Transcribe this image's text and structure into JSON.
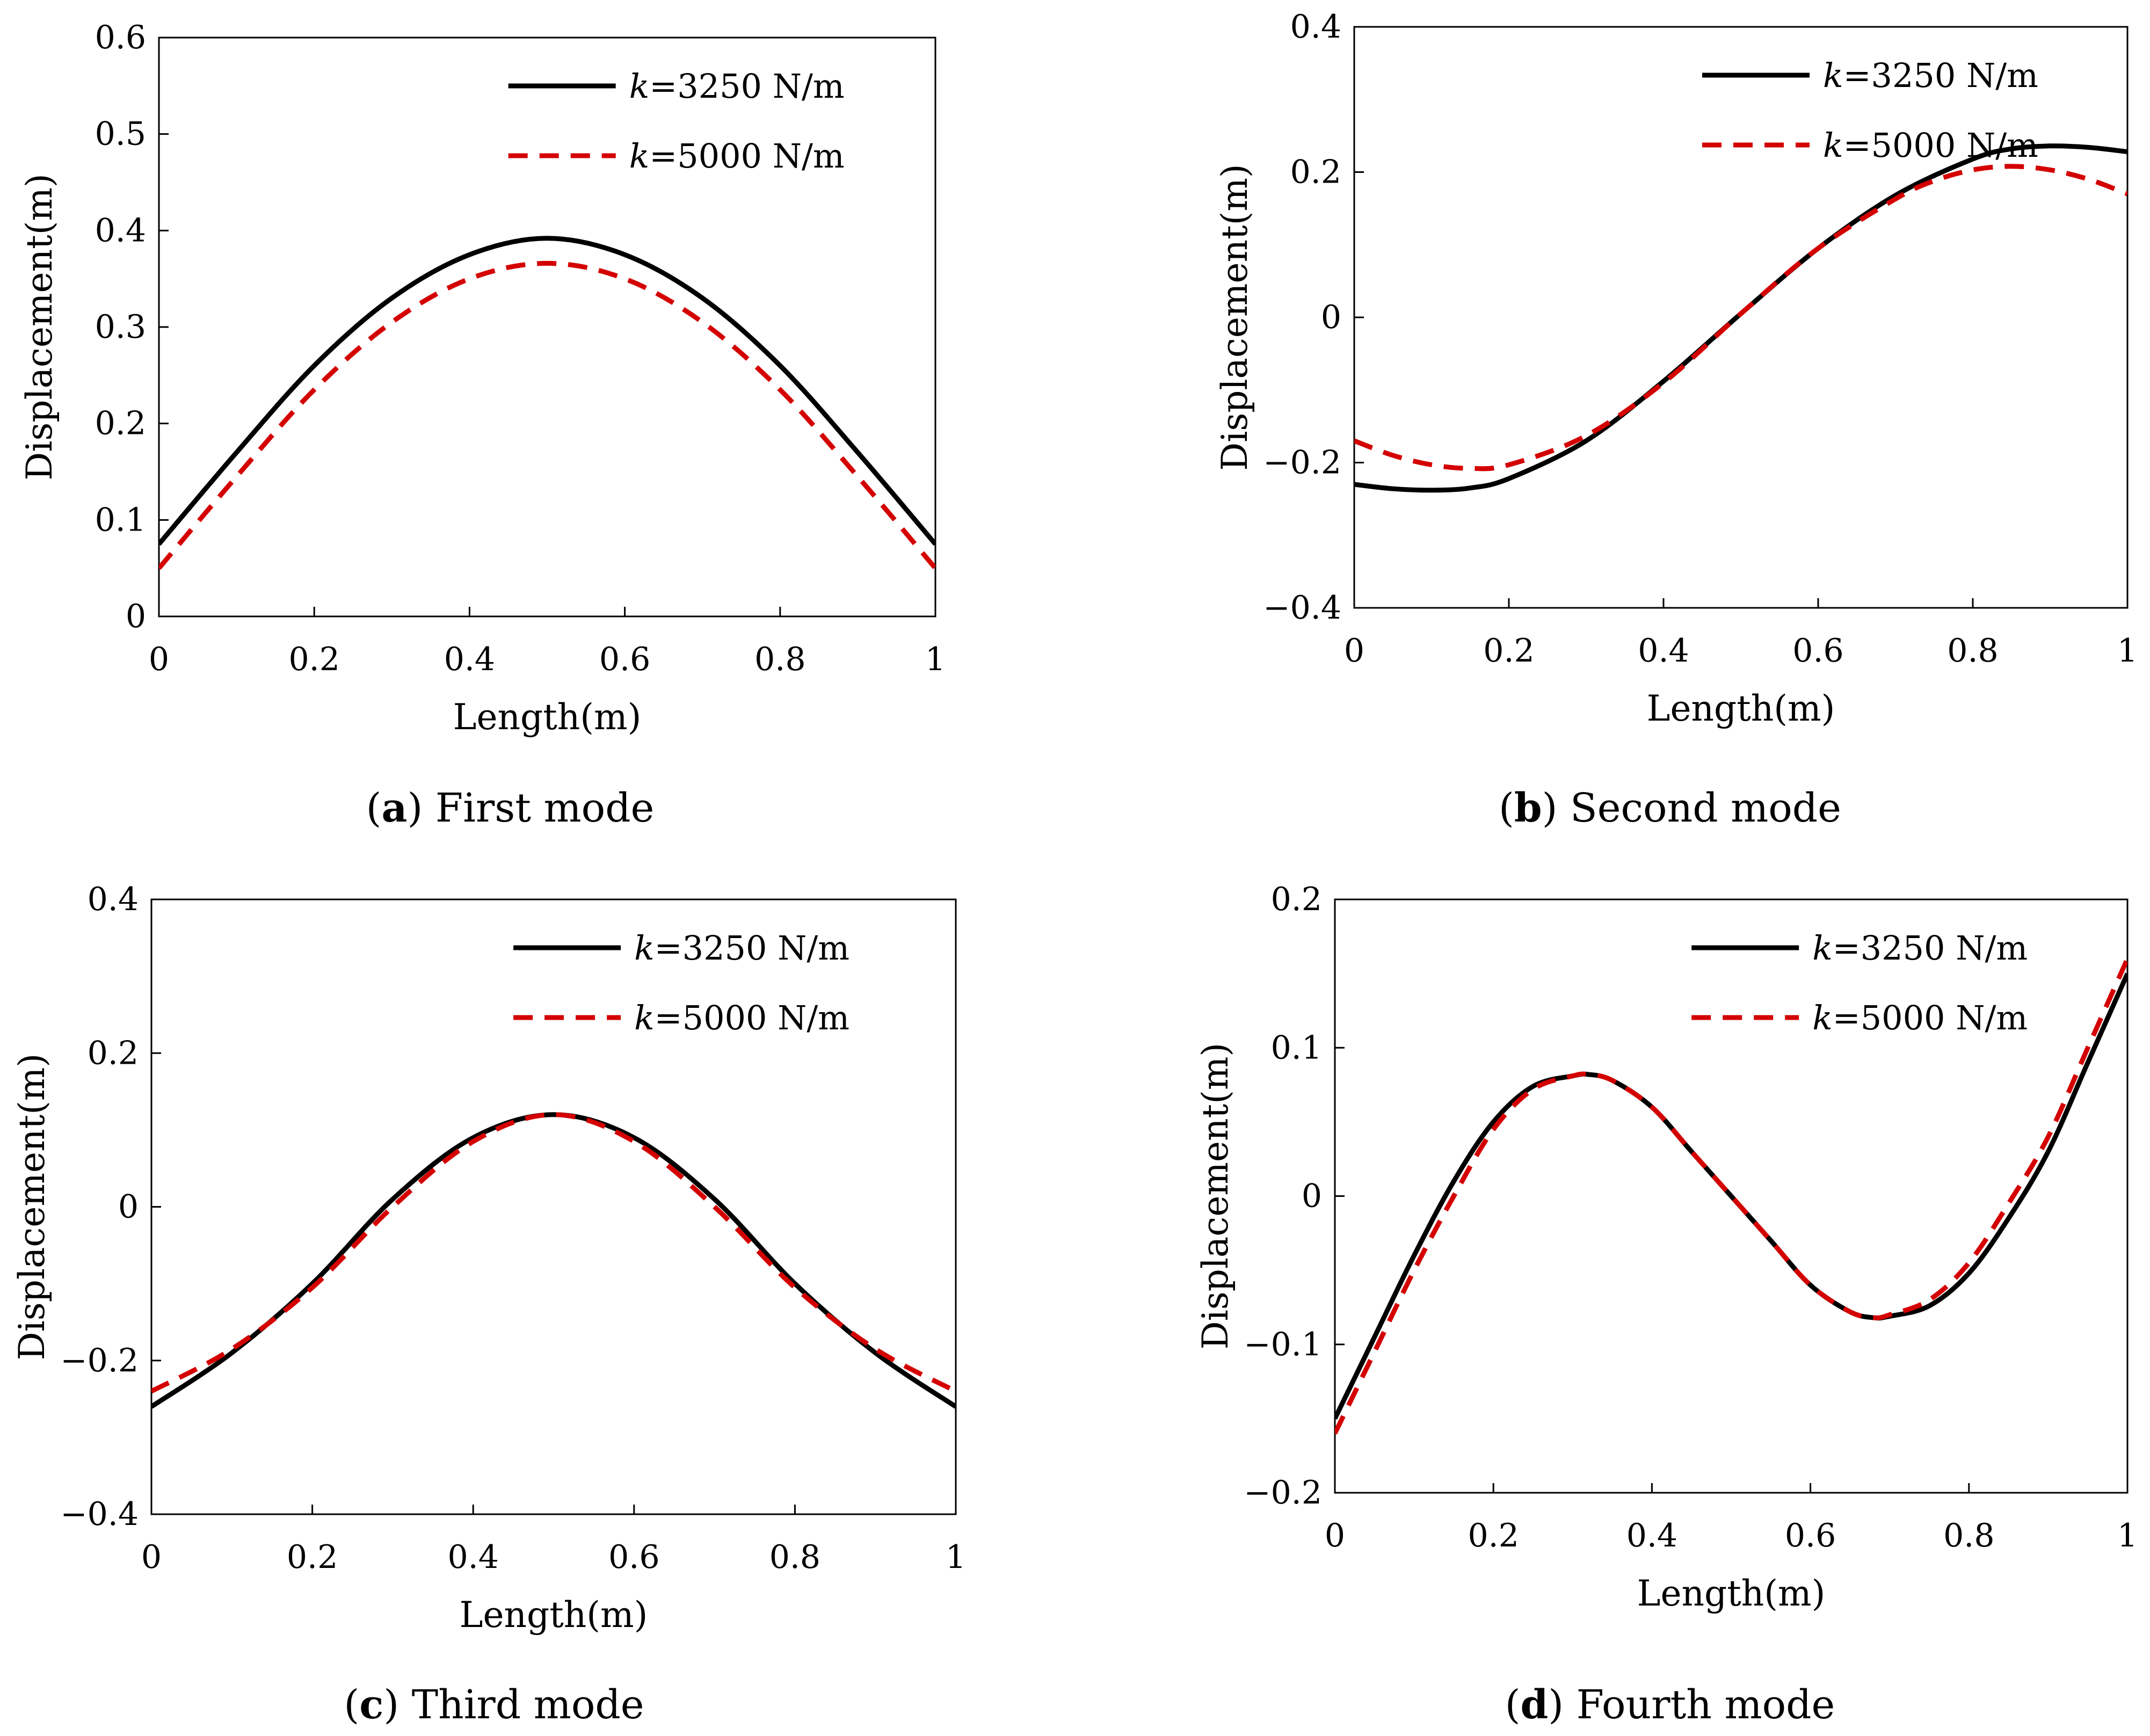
{
  "chart_data": [
    {
      "type": "line",
      "panel": "a",
      "caption_letter": "a",
      "caption_text": ") First mode",
      "xlabel": "Length(m)",
      "ylabel": "Displacement(m)",
      "xlim": [
        0,
        1
      ],
      "ylim": [
        0,
        0.6
      ],
      "xticks": [
        0,
        0.2,
        0.4,
        0.6,
        0.8,
        1
      ],
      "xtick_labels": [
        "0",
        "0.2",
        "0.4",
        "0.6",
        "0.8",
        "1"
      ],
      "yticks": [
        0,
        0.1,
        0.2,
        0.3,
        0.4,
        0.5,
        0.6
      ],
      "ytick_labels": [
        "0",
        "0.1",
        "0.2",
        "0.3",
        "0.4",
        "0.5",
        "0.6"
      ],
      "legend_position": "top-right",
      "series": [
        {
          "name_var": "k",
          "name_rest": "=3250 N/m",
          "color": "#000000",
          "style": "solid",
          "x": [
            0,
            0.1,
            0.2,
            0.3,
            0.4,
            0.5,
            0.6,
            0.7,
            0.8,
            0.9,
            1
          ],
          "y": [
            0.075,
            0.17,
            0.26,
            0.33,
            0.375,
            0.392,
            0.375,
            0.33,
            0.26,
            0.17,
            0.075
          ]
        },
        {
          "name_var": "k",
          "name_rest": "=5000 N/m",
          "color": "#d40000",
          "style": "dashed",
          "x": [
            0,
            0.1,
            0.2,
            0.3,
            0.4,
            0.5,
            0.6,
            0.7,
            0.8,
            0.9,
            1
          ],
          "y": [
            0.05,
            0.145,
            0.235,
            0.305,
            0.35,
            0.366,
            0.35,
            0.305,
            0.235,
            0.145,
            0.05
          ]
        }
      ]
    },
    {
      "type": "line",
      "panel": "b",
      "caption_letter": "b",
      "caption_text": ") Second mode",
      "xlabel": "Length(m)",
      "ylabel": "Displacement(m)",
      "xlim": [
        0,
        1
      ],
      "ylim": [
        -0.4,
        0.4
      ],
      "xticks": [
        0,
        0.2,
        0.4,
        0.6,
        0.8,
        1
      ],
      "xtick_labels": [
        "0",
        "0.2",
        "0.4",
        "0.6",
        "0.8",
        "1"
      ],
      "yticks": [
        -0.4,
        -0.2,
        0,
        0.2,
        0.4
      ],
      "ytick_labels": [
        "−0.4",
        "−0.2",
        "0",
        "0.2",
        "0.4"
      ],
      "legend_position": "top-right",
      "series": [
        {
          "name_var": "k",
          "name_rest": "=3250 N/m",
          "color": "#000000",
          "style": "solid",
          "x": [
            0,
            0.05,
            0.1,
            0.15,
            0.2,
            0.3,
            0.4,
            0.5,
            0.6,
            0.7,
            0.8,
            0.85,
            0.9,
            0.95,
            1
          ],
          "y": [
            -0.23,
            -0.236,
            -0.238,
            -0.235,
            -0.222,
            -0.17,
            -0.088,
            0.005,
            0.095,
            0.168,
            0.218,
            0.232,
            0.236,
            0.234,
            0.228
          ]
        },
        {
          "name_var": "k",
          "name_rest": "=5000 N/m",
          "color": "#d40000",
          "style": "dashed",
          "x": [
            0,
            0.05,
            0.1,
            0.15,
            0.2,
            0.3,
            0.4,
            0.5,
            0.6,
            0.7,
            0.75,
            0.8,
            0.85,
            0.9,
            0.95,
            1
          ],
          "y": [
            -0.17,
            -0.19,
            -0.203,
            -0.208,
            -0.203,
            -0.163,
            -0.09,
            0.005,
            0.095,
            0.163,
            0.188,
            0.203,
            0.208,
            0.203,
            0.19,
            0.17
          ]
        }
      ]
    },
    {
      "type": "line",
      "panel": "c",
      "caption_letter": "c",
      "caption_text": ") Third mode",
      "xlabel": "Length(m)",
      "ylabel": "Displacement(m)",
      "xlim": [
        0,
        1
      ],
      "ylim": [
        -0.4,
        0.4
      ],
      "xticks": [
        0,
        0.2,
        0.4,
        0.6,
        0.8,
        1
      ],
      "xtick_labels": [
        "0",
        "0.2",
        "0.4",
        "0.6",
        "0.8",
        "1"
      ],
      "yticks": [
        -0.4,
        -0.2,
        0,
        0.2,
        0.4
      ],
      "ytick_labels": [
        "−0.4",
        "−0.2",
        "0",
        "0.2",
        "0.4"
      ],
      "legend_position": "top-right",
      "series": [
        {
          "name_var": "k",
          "name_rest": "=3250 N/m",
          "color": "#000000",
          "style": "solid",
          "x": [
            0,
            0.1,
            0.2,
            0.3,
            0.4,
            0.5,
            0.6,
            0.7,
            0.8,
            0.9,
            1
          ],
          "y": [
            -0.26,
            -0.19,
            -0.1,
            0.01,
            0.09,
            0.12,
            0.09,
            0.01,
            -0.1,
            -0.19,
            -0.26
          ]
        },
        {
          "name_var": "k",
          "name_rest": "=5000 N/m",
          "color": "#d40000",
          "style": "dashed",
          "x": [
            0,
            0.1,
            0.2,
            0.3,
            0.4,
            0.5,
            0.6,
            0.7,
            0.8,
            0.9,
            1
          ],
          "y": [
            -0.24,
            -0.185,
            -0.105,
            0.0,
            0.085,
            0.12,
            0.085,
            0.0,
            -0.105,
            -0.185,
            -0.24
          ]
        }
      ]
    },
    {
      "type": "line",
      "panel": "d",
      "caption_letter": "d",
      "caption_text": ") Fourth mode",
      "xlabel": "Length(m)",
      "ylabel": "Displacement(m)",
      "xlim": [
        0,
        1
      ],
      "ylim": [
        -0.2,
        0.2
      ],
      "xticks": [
        0,
        0.2,
        0.4,
        0.6,
        0.8,
        1
      ],
      "xtick_labels": [
        "0",
        "0.2",
        "0.4",
        "0.6",
        "0.8",
        "1"
      ],
      "yticks": [
        -0.2,
        -0.1,
        0,
        0.1,
        0.2
      ],
      "ytick_labels": [
        "−0.2",
        "−0.1",
        "0",
        "0.1",
        "0.2"
      ],
      "legend_position": "top-right",
      "series": [
        {
          "name_var": "k",
          "name_rest": "=3250 N/m",
          "color": "#000000",
          "style": "solid",
          "x": [
            0,
            0.05,
            0.1,
            0.15,
            0.2,
            0.25,
            0.3,
            0.32,
            0.35,
            0.4,
            0.45,
            0.5,
            0.55,
            0.6,
            0.65,
            0.68,
            0.7,
            0.75,
            0.8,
            0.85,
            0.9,
            0.95,
            1
          ],
          "y": [
            -0.15,
            -0.095,
            -0.04,
            0.01,
            0.05,
            0.074,
            0.081,
            0.082,
            0.078,
            0.06,
            0.03,
            0.0,
            -0.03,
            -0.06,
            -0.078,
            -0.082,
            -0.081,
            -0.074,
            -0.052,
            -0.015,
            0.03,
            0.09,
            0.15
          ]
        },
        {
          "name_var": "k",
          "name_rest": "=5000 N/m",
          "color": "#d40000",
          "style": "dashed",
          "x": [
            0,
            0.05,
            0.1,
            0.15,
            0.2,
            0.25,
            0.3,
            0.32,
            0.35,
            0.4,
            0.45,
            0.5,
            0.55,
            0.6,
            0.65,
            0.68,
            0.7,
            0.75,
            0.8,
            0.85,
            0.9,
            0.95,
            1
          ],
          "y": [
            -0.16,
            -0.105,
            -0.05,
            0.0,
            0.045,
            0.072,
            0.081,
            0.082,
            0.078,
            0.06,
            0.03,
            0.0,
            -0.03,
            -0.06,
            -0.078,
            -0.082,
            -0.08,
            -0.07,
            -0.045,
            -0.005,
            0.04,
            0.1,
            0.16
          ]
        }
      ]
    }
  ]
}
